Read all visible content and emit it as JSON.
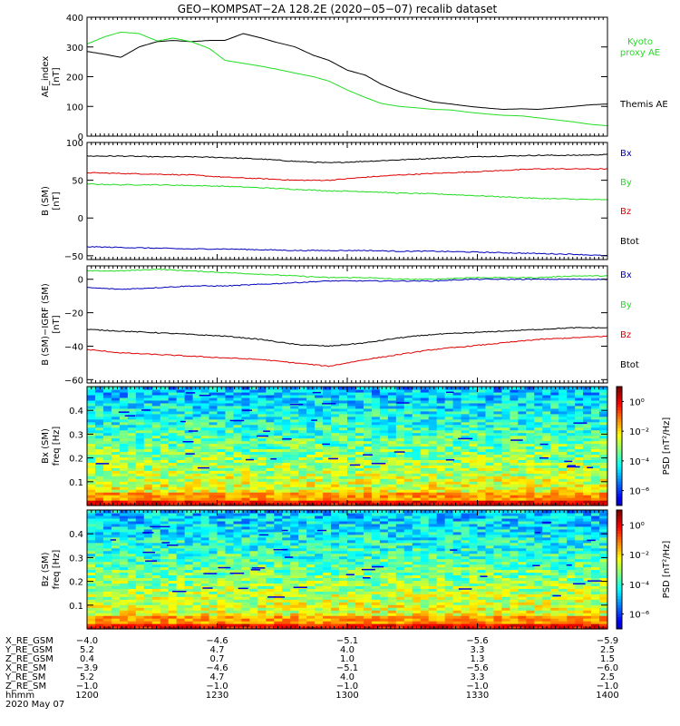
{
  "title": "GEO−KOMPSAT−2A 128.2E (2020−05−07) recalib dataset",
  "colors": {
    "black": "#000000",
    "green": "#22dd22",
    "red": "#dd0000",
    "blue": "#0000bb"
  },
  "chart_data": [
    {
      "type": "line",
      "panel": "ae",
      "ylabel": [
        "AE_index",
        "[nT]"
      ],
      "ylim": [
        0,
        400
      ],
      "yticks": [
        0,
        100,
        200,
        300,
        400
      ],
      "x": [
        12.0,
        12.07,
        12.13,
        12.2,
        12.27,
        12.33,
        12.4,
        12.47,
        12.53,
        12.6,
        12.67,
        12.73,
        12.8,
        12.87,
        12.93,
        13.0,
        13.07,
        13.13,
        13.2,
        13.27,
        13.33,
        13.4,
        13.47,
        13.53,
        13.6,
        13.67,
        13.73,
        13.8,
        13.87,
        13.93,
        14.0
      ],
      "series": [
        {
          "name": "Themis AE",
          "color": "black",
          "values": [
            285,
            275,
            265,
            300,
            318,
            322,
            318,
            322,
            322,
            345,
            330,
            315,
            300,
            272,
            255,
            222,
            205,
            175,
            150,
            130,
            115,
            108,
            100,
            95,
            90,
            92,
            90,
            95,
            100,
            105,
            108
          ]
        },
        {
          "name": "Kyoto proxy AE",
          "color": "green",
          "values": [
            310,
            335,
            350,
            345,
            320,
            330,
            318,
            295,
            255,
            245,
            235,
            225,
            212,
            200,
            185,
            155,
            130,
            110,
            100,
            95,
            90,
            88,
            80,
            75,
            70,
            68,
            62,
            55,
            48,
            40,
            35
          ]
        }
      ],
      "legend": [
        {
          "label": "Kyoto",
          "color": "green"
        },
        {
          "label": "proxy AE",
          "color": "green"
        },
        {
          "label": "Themis AE",
          "color": "black"
        }
      ]
    },
    {
      "type": "line",
      "panel": "bsm",
      "ylabel": [
        "B (SM)",
        "[nT]"
      ],
      "ylim": [
        -55,
        100
      ],
      "yticks": [
        -50,
        0,
        50,
        100
      ],
      "x": [
        12.0,
        12.13,
        12.27,
        12.4,
        12.53,
        12.67,
        12.8,
        12.93,
        13.07,
        13.2,
        13.33,
        13.47,
        13.6,
        13.73,
        13.87,
        14.0
      ],
      "series": [
        {
          "name": "Btot",
          "color": "black",
          "values": [
            82,
            82,
            81,
            81,
            80,
            78,
            75,
            73,
            75,
            77,
            79,
            81,
            82,
            83,
            83,
            84
          ]
        },
        {
          "name": "Bz",
          "color": "red",
          "values": [
            60,
            59,
            58,
            57,
            54,
            52,
            50,
            50,
            54,
            57,
            59,
            61,
            63,
            65,
            65,
            65
          ]
        },
        {
          "name": "By",
          "color": "green",
          "values": [
            45,
            44,
            44,
            43,
            42,
            40,
            38,
            36,
            35,
            33,
            32,
            30,
            28,
            26,
            25,
            24
          ]
        },
        {
          "name": "Bx",
          "color": "blue",
          "values": [
            -38,
            -39,
            -40,
            -41,
            -41,
            -42,
            -43,
            -43,
            -43,
            -44,
            -44,
            -45,
            -46,
            -47,
            -48,
            -50
          ]
        }
      ],
      "legend": [
        {
          "label": "Bx",
          "color": "blue"
        },
        {
          "label": "By",
          "color": "green"
        },
        {
          "label": "Bz",
          "color": "red"
        },
        {
          "label": "Btot",
          "color": "black"
        }
      ]
    },
    {
      "type": "line",
      "panel": "bigrf",
      "ylabel": [
        "B (SM)−IGRF (SM)",
        "[nT]"
      ],
      "ylim": [
        -62,
        8
      ],
      "yticks": [
        -60,
        -40,
        -20,
        0
      ],
      "x": [
        12.0,
        12.13,
        12.27,
        12.4,
        12.53,
        12.67,
        12.8,
        12.93,
        13.07,
        13.2,
        13.33,
        13.47,
        13.6,
        13.73,
        13.87,
        14.0
      ],
      "series": [
        {
          "name": "By",
          "color": "green",
          "values": [
            5,
            5,
            6,
            5,
            4,
            3,
            2,
            1,
            1,
            0,
            0,
            1,
            1,
            1,
            2,
            2
          ]
        },
        {
          "name": "Bx",
          "color": "blue",
          "values": [
            -5,
            -6,
            -5,
            -4,
            -4,
            -3,
            -2,
            -1,
            -1,
            -1,
            -1,
            0,
            0,
            0,
            0,
            0
          ]
        },
        {
          "name": "Btot",
          "color": "black",
          "values": [
            -30,
            -31,
            -32,
            -33,
            -34,
            -36,
            -39,
            -40,
            -38,
            -35,
            -33,
            -32,
            -31,
            -30,
            -29,
            -29
          ]
        },
        {
          "name": "Bz",
          "color": "red",
          "values": [
            -42,
            -44,
            -45,
            -46,
            -47,
            -48,
            -50,
            -52,
            -48,
            -45,
            -42,
            -40,
            -38,
            -36,
            -35,
            -34
          ]
        }
      ],
      "legend": [
        {
          "label": "Bx",
          "color": "blue"
        },
        {
          "label": "By",
          "color": "green"
        },
        {
          "label": "Bz",
          "color": "red"
        },
        {
          "label": "Btot",
          "color": "black"
        }
      ]
    },
    {
      "type": "heatmap",
      "panel": "specbx",
      "ylabel": [
        "Bx (SM)",
        "freq [Hz]"
      ],
      "ylim": [
        0,
        0.5
      ],
      "yticks": [
        0.1,
        0.2,
        0.3,
        0.4
      ],
      "colorbar": {
        "label": "PSD [nT²/Hz]",
        "ticks": [
          "10⁰",
          "10⁻²",
          "10⁻⁴",
          "10⁻⁶"
        ],
        "range_exp": [
          -7,
          1
        ]
      }
    },
    {
      "type": "heatmap",
      "panel": "specbz",
      "ylabel": [
        "Bz (SM)",
        "freq [Hz]"
      ],
      "ylim": [
        0,
        0.5
      ],
      "yticks": [
        0.1,
        0.2,
        0.3,
        0.4
      ],
      "colorbar": {
        "label": "PSD [nT²/Hz]",
        "ticks": [
          "10⁰",
          "10⁻²",
          "10⁻⁴",
          "10⁻⁶"
        ],
        "range_exp": [
          -7,
          1
        ]
      }
    }
  ],
  "xaxis": {
    "range": [
      12.0,
      14.0
    ],
    "tick_hours": [
      12.0,
      12.5,
      13.0,
      13.5,
      14.0
    ],
    "rows": [
      {
        "label": "X_RE_GSM",
        "values": [
          "−4.0",
          "−4.6",
          "−5.1",
          "−5.6",
          "−5.9"
        ]
      },
      {
        "label": "Y_RE_GSM",
        "values": [
          "5.2",
          "4.7",
          "4.0",
          "3.3",
          "2.5"
        ]
      },
      {
        "label": "Z_RE_GSM",
        "values": [
          "0.4",
          "0.7",
          "1.0",
          "1.3",
          "1.5"
        ]
      },
      {
        "label": "X_RE_SM",
        "values": [
          "−3.9",
          "−4.6",
          "−5.1",
          "−5.6",
          "−6.0"
        ]
      },
      {
        "label": "Y_RE_SM",
        "values": [
          "5.2",
          "4.7",
          "4.0",
          "3.3",
          "2.5"
        ]
      },
      {
        "label": "Z_RE_SM",
        "values": [
          "−1.0",
          "−1.0",
          "−1.0",
          "−1.0",
          "−1.0"
        ]
      },
      {
        "label": "hhmm",
        "values": [
          "1200",
          "1230",
          "1300",
          "1330",
          "1400"
        ]
      }
    ],
    "date": "2020 May 07"
  }
}
